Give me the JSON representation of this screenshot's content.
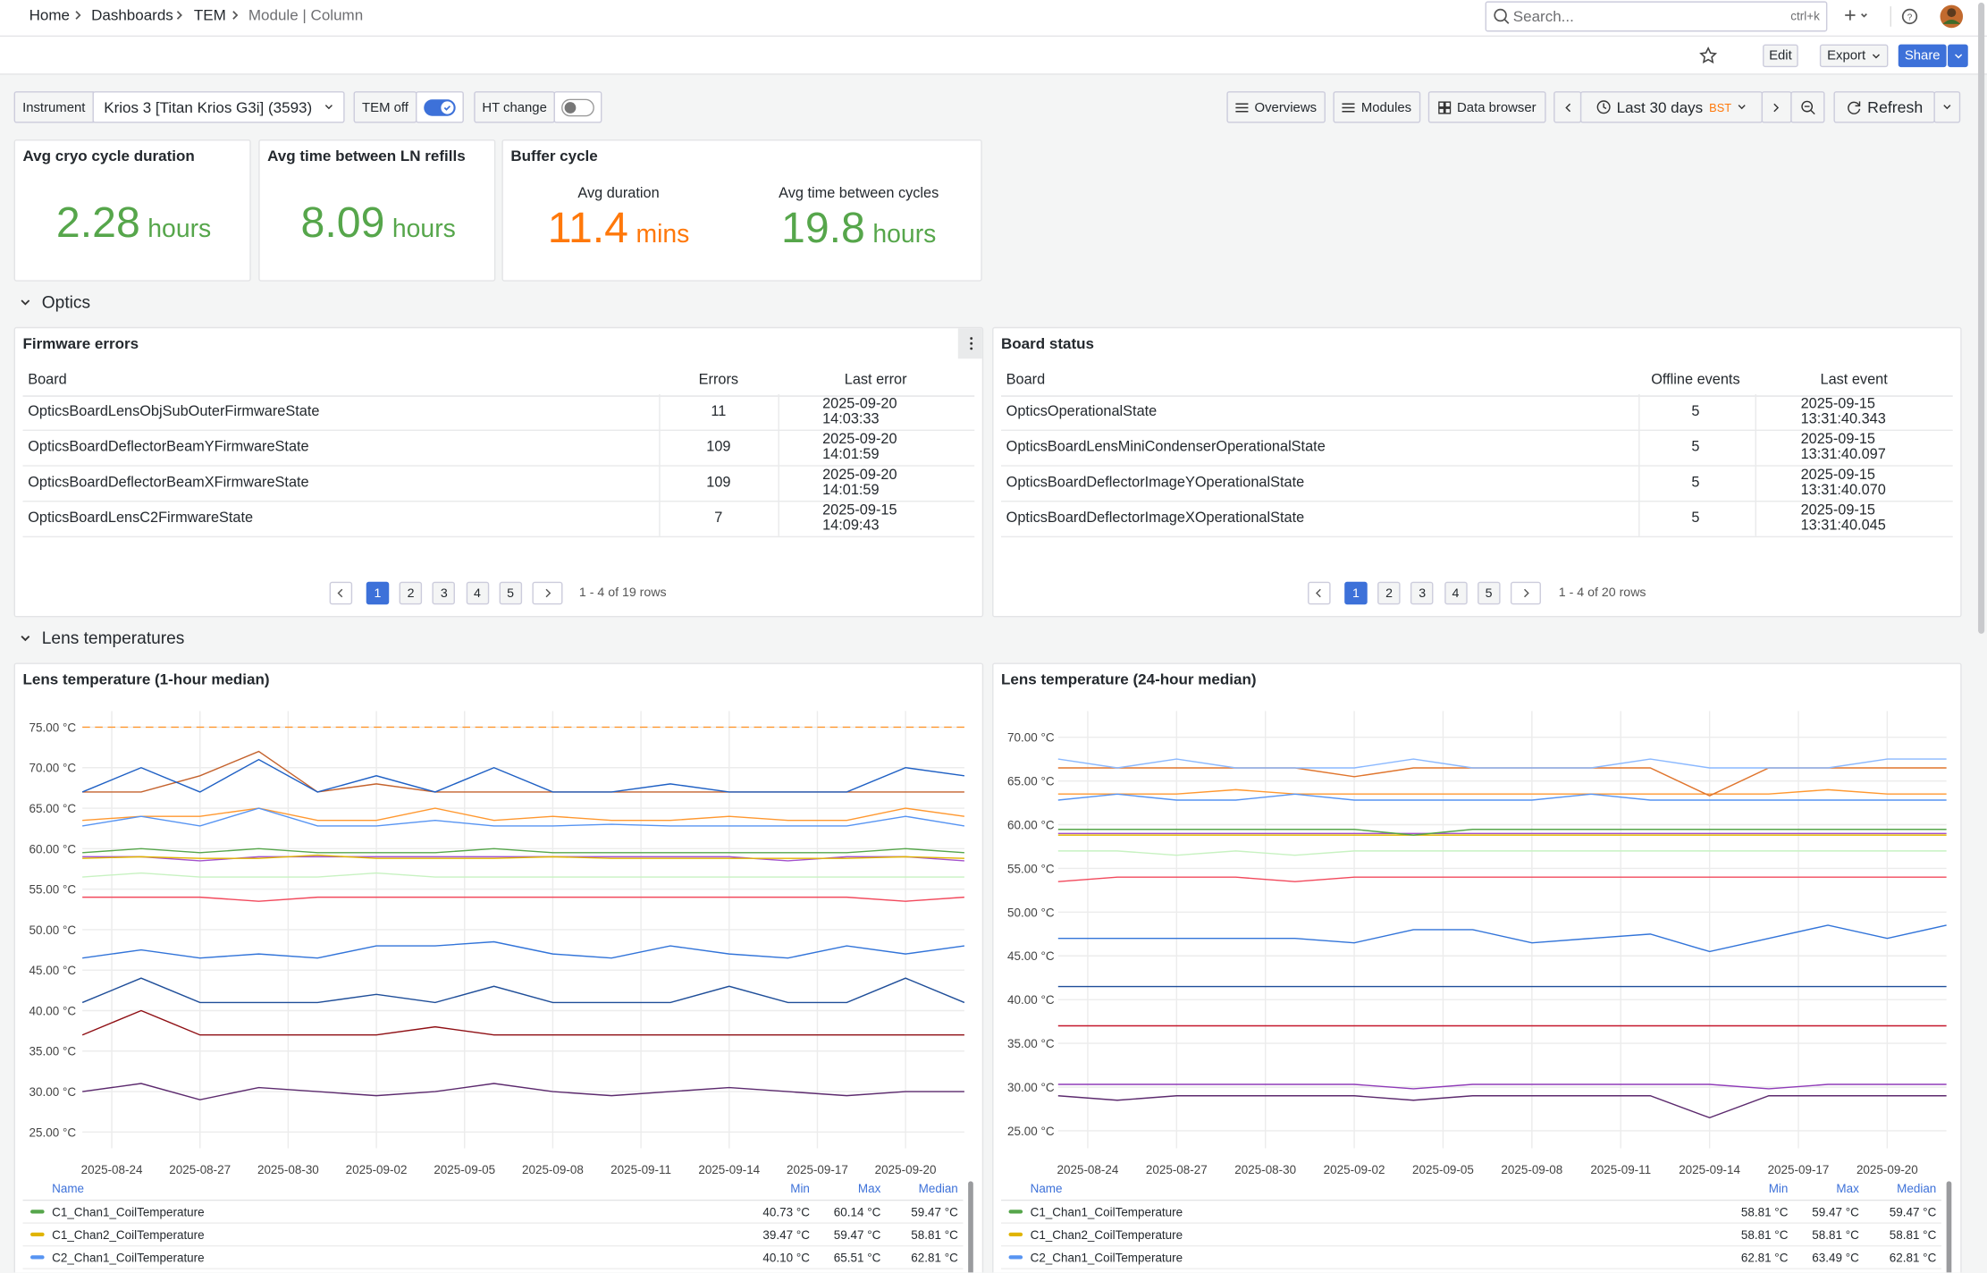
{
  "breadcrumb": [
    "Home",
    "Dashboards",
    "TEM",
    "Module | Column"
  ],
  "search": {
    "placeholder": "Search...",
    "shortcut": "ctrl+k"
  },
  "actions": {
    "edit": "Edit",
    "export": "Export",
    "share": "Share"
  },
  "variables": {
    "instrument_label": "Instrument",
    "instrument": "Krios 3 [Titan Krios G3i] (3593)",
    "tem_off": "TEM off",
    "ht_change": "HT change"
  },
  "nav": {
    "overviews": "Overviews",
    "modules": "Modules",
    "data_browser": "Data browser",
    "time_range": "Last 30 days",
    "timezone": "BST",
    "refresh": "Refresh"
  },
  "stats": [
    {
      "title": "Avg cryo cycle duration",
      "value": 2.28,
      "unit": "hours"
    },
    {
      "title": "Avg time between LN refills",
      "value": 8.09,
      "unit": "hours"
    }
  ],
  "buffer_cycle": {
    "title": "Buffer cycle",
    "items": [
      {
        "label": "Avg duration",
        "value": 11.4,
        "unit": "mins",
        "color": "#ff780a"
      },
      {
        "label": "Avg time between cycles",
        "value": 19.8,
        "unit": "hours",
        "color": "#56a64b"
      }
    ]
  },
  "rows": [
    "Optics",
    "Lens temperatures"
  ],
  "firmware_errors": {
    "title": "Firmware errors",
    "columns": [
      "Board",
      "Errors",
      "Last error"
    ],
    "rows": [
      [
        "OpticsBoardLensObjSubOuterFirmwareState",
        11,
        "2025-09-20 14:03:33"
      ],
      [
        "OpticsBoardDeflectorBeamYFirmwareState",
        109,
        "2025-09-20 14:01:59"
      ],
      [
        "OpticsBoardDeflectorBeamXFirmwareState",
        109,
        "2025-09-20 14:01:59"
      ],
      [
        "OpticsBoardLensC2FirmwareState",
        7,
        "2025-09-15 14:09:43"
      ]
    ],
    "pages": [
      1,
      2,
      3,
      4,
      5
    ],
    "summary": "1 - 4 of 19 rows"
  },
  "board_status": {
    "title": "Board status",
    "columns": [
      "Board",
      "Offline events",
      "Last event"
    ],
    "rows": [
      [
        "OpticsOperationalState",
        5,
        "2025-09-15 13:31:40.343"
      ],
      [
        "OpticsBoardLensMiniCondenserOperationalState",
        5,
        "2025-09-15 13:31:40.097"
      ],
      [
        "OpticsBoardDeflectorImageYOperationalState",
        5,
        "2025-09-15 13:31:40.070"
      ],
      [
        "OpticsBoardDeflectorImageXOperationalState",
        5,
        "2025-09-15 13:31:40.045"
      ]
    ],
    "pages": [
      1,
      2,
      3,
      4,
      5
    ],
    "summary": "1 - 4 of 20 rows"
  },
  "chart_data": [
    {
      "type": "line",
      "title": "Lens temperature (1-hour median)",
      "grid": true,
      "x": [
        "2025-08-23",
        "2025-08-25",
        "2025-08-27",
        "2025-08-29",
        "2025-08-31",
        "2025-09-02",
        "2025-09-04",
        "2025-09-06",
        "2025-09-08",
        "2025-09-10",
        "2025-09-12",
        "2025-09-14",
        "2025-09-16",
        "2025-09-18",
        "2025-09-20",
        "2025-09-22"
      ],
      "xlim": [
        "2025-08-23",
        "2025-09-22"
      ],
      "xticks": [
        "2025-08-24",
        "2025-08-27",
        "2025-08-30",
        "2025-09-02",
        "2025-09-05",
        "2025-09-08",
        "2025-09-11",
        "2025-09-14",
        "2025-09-17",
        "2025-09-20"
      ],
      "ylim": [
        23,
        77
      ],
      "yticks": [
        {
          "value": 25,
          "label": "25.00 °C"
        },
        {
          "value": 30,
          "label": "30.00 °C"
        },
        {
          "value": 35,
          "label": "35.00 °C"
        },
        {
          "value": 40,
          "label": "40.00 °C"
        },
        {
          "value": 45,
          "label": "45.00 °C"
        },
        {
          "value": 50,
          "label": "50.00 °C"
        },
        {
          "value": 55,
          "label": "55.00 °C"
        },
        {
          "value": 60,
          "label": "60.00 °C"
        },
        {
          "value": 65,
          "label": "65.00 °C"
        },
        {
          "value": 70,
          "label": "70.00 °C"
        },
        {
          "value": 75,
          "label": "75.00 °C"
        }
      ],
      "threshold": {
        "value": 75,
        "color": "#ff9830"
      },
      "legend": {
        "columns": [
          "Name",
          "Min",
          "Max",
          "Median"
        ]
      },
      "series": [
        {
          "name": "C1_Chan1_CoilTemperature",
          "color": "#56a64b",
          "values": [
            59.5,
            60,
            59.5,
            60,
            59.5,
            59.5,
            59.5,
            60,
            59.5,
            59.5,
            59.5,
            59.5,
            59.5,
            59.5,
            60,
            59.5
          ],
          "min": {
            "value": 40.73,
            "label": "40.73 °C"
          },
          "max": {
            "value": 60.14,
            "label": "60.14 °C"
          },
          "median": {
            "value": 59.47,
            "label": "59.47 °C"
          }
        },
        {
          "name": "C1_Chan2_CoilTemperature",
          "color": "#e0b400",
          "values": [
            58.8,
            59,
            58.8,
            58.8,
            59.2,
            58.8,
            58.8,
            58.8,
            59,
            58.8,
            58.8,
            58.8,
            58.8,
            58.8,
            59,
            58.8
          ],
          "min": {
            "value": 39.47,
            "label": "39.47 °C"
          },
          "max": {
            "value": 59.47,
            "label": "59.47 °C"
          },
          "median": {
            "value": 58.81,
            "label": "58.81 °C"
          }
        },
        {
          "name": "C2_Chan1_CoilTemperature",
          "color": "#5794f2",
          "values": [
            62.8,
            64,
            62.8,
            65,
            62.8,
            62.8,
            63.5,
            62.8,
            62.8,
            63,
            62.8,
            62.8,
            62.8,
            62.8,
            64,
            62.8
          ],
          "min": {
            "value": 40.1,
            "label": "40.10 °C"
          },
          "max": {
            "value": 65.51,
            "label": "65.51 °C"
          },
          "median": {
            "value": 62.81,
            "label": "62.81 °C"
          }
        },
        {
          "color": "#1f60c4",
          "values": [
            67,
            70,
            67,
            71,
            67,
            69,
            67,
            70,
            67,
            67,
            68,
            67,
            67,
            67,
            70,
            69
          ]
        },
        {
          "color": "#c4622d",
          "values": [
            67,
            67,
            69,
            72,
            67,
            68,
            67,
            67,
            67,
            67,
            67,
            67,
            67,
            67,
            67,
            67
          ]
        },
        {
          "color": "#ff9830",
          "values": [
            63.5,
            64,
            64,
            65,
            63.5,
            63.5,
            65,
            63.5,
            64,
            63.5,
            63.5,
            64,
            63.5,
            63.5,
            65,
            64
          ]
        },
        {
          "color": "#a352cc",
          "values": [
            59,
            59,
            58.5,
            59,
            59,
            59,
            59,
            59,
            59,
            59,
            59,
            59,
            58.5,
            59,
            59,
            58.5
          ]
        },
        {
          "color": "#c8f2c2",
          "values": [
            56.5,
            57,
            56.5,
            56.5,
            56.5,
            57,
            56.5,
            56.5,
            56.5,
            56.5,
            56.5,
            56.5,
            56.5,
            56.5,
            56.5,
            56.5
          ]
        },
        {
          "color": "#f2495c",
          "values": [
            54,
            54,
            54,
            53.5,
            54,
            54,
            54,
            54,
            54,
            54,
            54,
            54,
            54,
            54,
            53.5,
            54
          ]
        },
        {
          "color": "#3274d9",
          "values": [
            46.5,
            47.5,
            46.5,
            47,
            46.5,
            48,
            48,
            48.5,
            47,
            46.5,
            48,
            47,
            46.5,
            48,
            47,
            48
          ]
        },
        {
          "color": "#1f4e99",
          "values": [
            41,
            44,
            41,
            41,
            41,
            42,
            41,
            43,
            41,
            41,
            41,
            43,
            41,
            41,
            44,
            41
          ]
        },
        {
          "color": "#8f0f14",
          "values": [
            37,
            40,
            37,
            37,
            37,
            37,
            38,
            37,
            37,
            37,
            37,
            37,
            37,
            37,
            37,
            37
          ]
        },
        {
          "color": "#5c2a6e",
          "values": [
            30,
            31,
            29,
            30.5,
            30,
            29.5,
            30,
            31,
            30,
            29.5,
            30,
            30.5,
            30,
            29.5,
            30,
            30
          ]
        }
      ]
    },
    {
      "type": "line",
      "title": "Lens temperature (24-hour median)",
      "grid": true,
      "x": [
        "2025-08-23",
        "2025-08-25",
        "2025-08-27",
        "2025-08-29",
        "2025-08-31",
        "2025-09-02",
        "2025-09-04",
        "2025-09-06",
        "2025-09-08",
        "2025-09-10",
        "2025-09-12",
        "2025-09-14",
        "2025-09-16",
        "2025-09-18",
        "2025-09-20",
        "2025-09-22"
      ],
      "xlim": [
        "2025-08-23",
        "2025-09-22"
      ],
      "xticks": [
        "2025-08-24",
        "2025-08-27",
        "2025-08-30",
        "2025-09-02",
        "2025-09-05",
        "2025-09-08",
        "2025-09-11",
        "2025-09-14",
        "2025-09-17",
        "2025-09-20"
      ],
      "ylim": [
        23,
        73
      ],
      "yticks": [
        {
          "value": 25,
          "label": "25.00 °C"
        },
        {
          "value": 30,
          "label": "30.00 °C"
        },
        {
          "value": 35,
          "label": "35.00 °C"
        },
        {
          "value": 40,
          "label": "40.00 °C"
        },
        {
          "value": 45,
          "label": "45.00 °C"
        },
        {
          "value": 50,
          "label": "50.00 °C"
        },
        {
          "value": 55,
          "label": "55.00 °C"
        },
        {
          "value": 60,
          "label": "60.00 °C"
        },
        {
          "value": 65,
          "label": "65.00 °C"
        },
        {
          "value": 70,
          "label": "70.00 °C"
        }
      ],
      "legend": {
        "columns": [
          "Name",
          "Min",
          "Max",
          "Median"
        ]
      },
      "series": [
        {
          "name": "C1_Chan1_CoilTemperature",
          "color": "#56a64b",
          "values": [
            59.47,
            59.47,
            59.47,
            59.47,
            59.47,
            59.47,
            58.81,
            59.47,
            59.47,
            59.47,
            59.47,
            59.47,
            59.47,
            59.47,
            59.47,
            59.47
          ],
          "min": {
            "value": 58.81,
            "label": "58.81 °C"
          },
          "max": {
            "value": 59.47,
            "label": "59.47 °C"
          },
          "median": {
            "value": 59.47,
            "label": "59.47 °C"
          }
        },
        {
          "name": "C1_Chan2_CoilTemperature",
          "color": "#e0b400",
          "values": [
            58.81,
            58.81,
            58.81,
            58.81,
            58.81,
            58.81,
            58.81,
            58.81,
            58.81,
            58.81,
            58.81,
            58.81,
            58.81,
            58.81,
            58.81,
            58.81
          ],
          "min": {
            "value": 58.81,
            "label": "58.81 °C"
          },
          "max": {
            "value": 58.81,
            "label": "58.81 °C"
          },
          "median": {
            "value": 58.81,
            "label": "58.81 °C"
          }
        },
        {
          "name": "C2_Chan1_CoilTemperature",
          "color": "#5794f2",
          "values": [
            62.81,
            63.49,
            62.81,
            62.81,
            63.49,
            62.81,
            62.81,
            62.81,
            62.81,
            63.49,
            62.81,
            62.81,
            62.81,
            62.81,
            62.81,
            62.81
          ],
          "min": {
            "value": 62.81,
            "label": "62.81 °C"
          },
          "max": {
            "value": 63.49,
            "label": "63.49 °C"
          },
          "median": {
            "value": 62.81,
            "label": "62.81 °C"
          }
        },
        {
          "color": "#8ab8ff",
          "values": [
            67.5,
            66.5,
            67.5,
            66.5,
            66.5,
            66.5,
            67.5,
            66.5,
            66.5,
            66.5,
            67.5,
            66.5,
            66.5,
            66.5,
            67.5,
            67.5
          ]
        },
        {
          "color": "#e0752d",
          "values": [
            66.5,
            66.5,
            66.5,
            66.5,
            66.5,
            65.5,
            66.5,
            66.5,
            66.5,
            66.5,
            66.5,
            63.3,
            66.5,
            66.5,
            66.5,
            66.5
          ]
        },
        {
          "color": "#ff9830",
          "values": [
            63.5,
            63.5,
            63.5,
            64,
            63.5,
            63.5,
            63.5,
            63.5,
            63.5,
            63.5,
            63.5,
            63.5,
            63.5,
            64,
            63.5,
            63.5
          ]
        },
        {
          "color": "#a352cc",
          "values": [
            59,
            59,
            59,
            59,
            59,
            59,
            59,
            59,
            59,
            59,
            59,
            59,
            59,
            59,
            59,
            59
          ]
        },
        {
          "color": "#c8f2c2",
          "values": [
            57,
            57,
            56.5,
            57,
            56.5,
            57,
            57,
            57,
            57,
            57,
            57,
            57,
            57,
            57,
            57,
            57
          ]
        },
        {
          "color": "#f2495c",
          "values": [
            53.5,
            54,
            54,
            54,
            53.5,
            54,
            54,
            54,
            54,
            54,
            54,
            54,
            54,
            54,
            54,
            54
          ]
        },
        {
          "color": "#3274d9",
          "values": [
            47,
            47,
            47,
            47,
            47,
            46.5,
            48,
            48,
            46.5,
            47,
            47.5,
            45.5,
            47,
            48.5,
            47,
            48.5
          ]
        },
        {
          "color": "#1f4e99",
          "values": [
            41.5,
            41.5,
            41.5,
            41.5,
            41.5,
            41.5,
            41.5,
            41.5,
            41.5,
            41.5,
            41.5,
            41.5,
            41.5,
            41.5,
            41.5,
            41.5
          ]
        },
        {
          "color": "#c4162a",
          "values": [
            37,
            37,
            37,
            37,
            37,
            37,
            37,
            37,
            37,
            37,
            37,
            37,
            37,
            37,
            37,
            37
          ]
        },
        {
          "color": "#8f3bb8",
          "values": [
            30.3,
            30.3,
            30.3,
            30.3,
            30.3,
            30.3,
            29.8,
            30.3,
            30.3,
            30.3,
            30.3,
            30.3,
            29.8,
            30.3,
            30.3,
            30.3
          ]
        },
        {
          "color": "#5c2a6e",
          "values": [
            29,
            28.5,
            29,
            29,
            29,
            29,
            28.5,
            29,
            29,
            29,
            29,
            26.5,
            29,
            29,
            29,
            29
          ]
        }
      ]
    }
  ]
}
